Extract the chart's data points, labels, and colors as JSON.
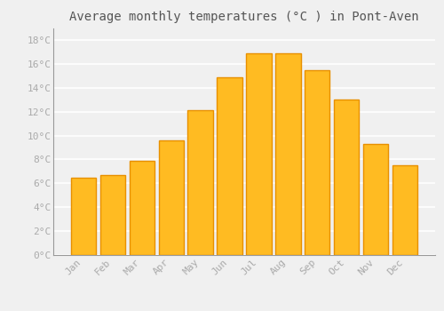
{
  "title": "Average monthly temperatures (°C ) in Pont-Aven",
  "months": [
    "Jan",
    "Feb",
    "Mar",
    "Apr",
    "May",
    "Jun",
    "Jul",
    "Aug",
    "Sep",
    "Oct",
    "Nov",
    "Dec"
  ],
  "values": [
    6.5,
    6.7,
    7.9,
    9.6,
    12.1,
    14.9,
    16.9,
    16.9,
    15.5,
    13.0,
    9.3,
    7.5
  ],
  "bar_color": "#FFBB22",
  "bar_edge_color": "#E89000",
  "bar_edge_width": 1.0,
  "ylim": [
    0,
    19
  ],
  "ytick_max": 18,
  "ytick_step": 2,
  "background_color": "#F0F0F0",
  "grid_color": "#FFFFFF",
  "title_fontsize": 10,
  "tick_fontsize": 8,
  "tick_color": "#AAAAAA",
  "title_color": "#555555",
  "font_family": "monospace",
  "bar_width": 0.85
}
